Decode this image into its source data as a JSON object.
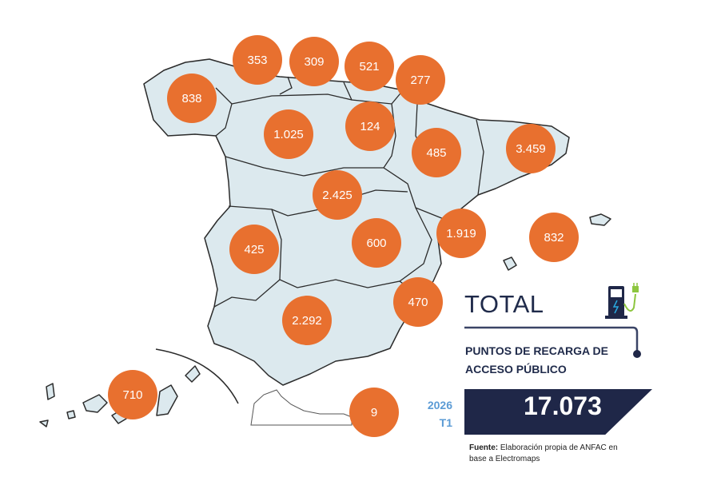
{
  "regions": [
    {
      "value": "838"
    },
    {
      "value": "353"
    },
    {
      "value": "309"
    },
    {
      "value": "521"
    },
    {
      "value": "277"
    },
    {
      "value": "1.025"
    },
    {
      "value": "124"
    },
    {
      "value": "485"
    },
    {
      "value": "3.459"
    },
    {
      "value": "2.425"
    },
    {
      "value": "1.919"
    },
    {
      "value": "832"
    },
    {
      "value": "425"
    },
    {
      "value": "600"
    },
    {
      "value": "470"
    },
    {
      "value": "2.292"
    },
    {
      "value": "710"
    },
    {
      "value": "9"
    }
  ],
  "summary": {
    "title": "TOTAL",
    "subtitle_line1": "PUNTOS DE RECARGA DE",
    "subtitle_line2": "ACCESO PÚBLICO",
    "year": "2026",
    "quarter": "T1",
    "total": "17.073",
    "source_label": "Fuente:",
    "source_text": " Elaboración propia de ANFAC en",
    "source_text2": "base a Electromaps"
  },
  "colors": {
    "bubble": "#e8702f",
    "land": "#dce9ee",
    "navy": "#1f2748",
    "accent_blue": "#5b9bd5",
    "plug_green": "#8dc63f"
  }
}
